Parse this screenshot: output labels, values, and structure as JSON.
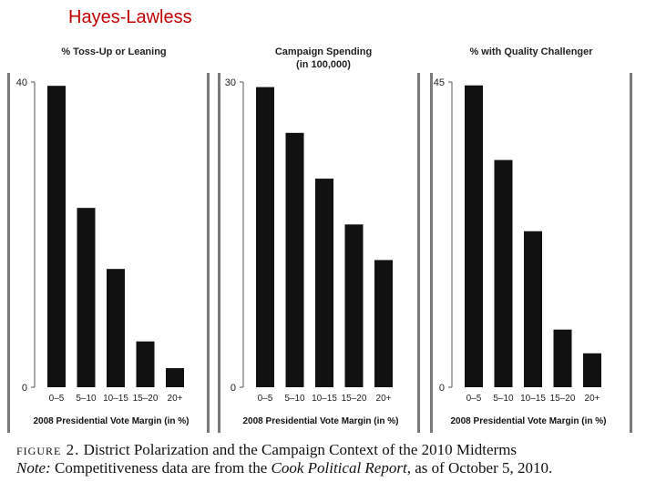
{
  "title": "Hayes-Lawless",
  "colors": {
    "title": "#c00000",
    "bar": "#111111",
    "frame": "#7a7a7a"
  },
  "chart_data": [
    {
      "type": "bar",
      "title": "% Toss-Up or Leaning",
      "xlabel": "2008 Presidential Vote Margin (in %)",
      "ylabel": "",
      "categories": [
        "0–5",
        "5–10",
        "10–15",
        "15–20",
        "20+"
      ],
      "values": [
        39.5,
        23.5,
        15.5,
        6,
        2.5
      ],
      "ylim": [
        0,
        40
      ],
      "yticks": [
        40,
        0
      ]
    },
    {
      "type": "bar",
      "title": "Campaign Spending",
      "subtitle": "(in 100,000)",
      "xlabel": "2008 Presidential Vote Margin (in %)",
      "ylabel": "",
      "categories": [
        "0–5",
        "5–10",
        "10–15",
        "15–20",
        "20+"
      ],
      "values": [
        29.5,
        25,
        20.5,
        16,
        12.5
      ],
      "ylim": [
        0,
        30
      ],
      "yticks": [
        30,
        0
      ]
    },
    {
      "type": "bar",
      "title": "% with Quality Challenger",
      "xlabel": "2008 Presidential Vote Margin (in %)",
      "ylabel": "",
      "categories": [
        "0–5",
        "5–10",
        "10–15",
        "15–20",
        "20+"
      ],
      "values": [
        44.5,
        33.5,
        23,
        8.5,
        5
      ],
      "ylim": [
        0,
        45
      ],
      "yticks": [
        45,
        0
      ]
    }
  ],
  "caption": {
    "figure_label": "figure 2.",
    "figure_text": "District Polarization and the Campaign Context of the 2010 Midterms",
    "note_label": "Note:",
    "note_text_1": "Competitiveness data are from the",
    "note_source": "Cook Political Report",
    "note_text_2": ", as of October 5, 2010."
  }
}
